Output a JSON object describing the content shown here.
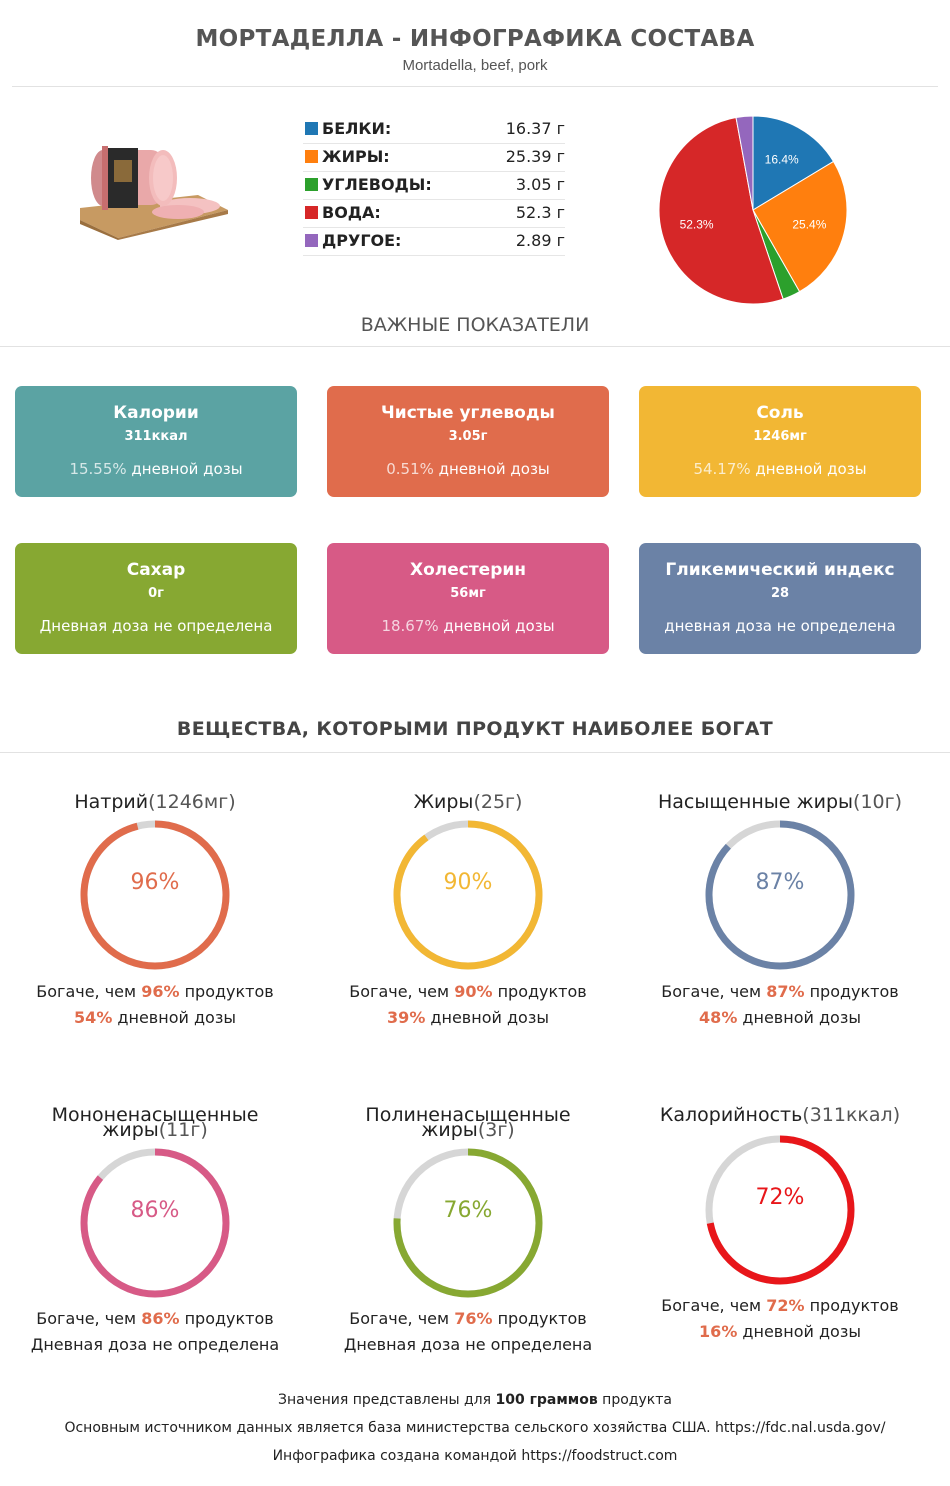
{
  "header": {
    "title": "МОРТАДЕЛЛА - ИНФОГРАФИКА СОСТАВА",
    "subtitle": "Mortadella, beef, pork"
  },
  "macros": [
    {
      "name": "БЕЛКИ:",
      "value": "16.37 г",
      "color": "#1f77b4"
    },
    {
      "name": "ЖИРЫ:",
      "value": "25.39 г",
      "color": "#ff7f0e"
    },
    {
      "name": "УГЛЕВОДЫ:",
      "value": "3.05 г",
      "color": "#2ca02c"
    },
    {
      "name": "ВОДА:",
      "value": "52.3 г",
      "color": "#d62728"
    },
    {
      "name": "ДРУГОЕ:",
      "value": "2.89 г",
      "color": "#9467bd"
    }
  ],
  "chart_data": {
    "type": "pie",
    "categories": [
      "Белки",
      "Жиры",
      "Углеводы",
      "Вода",
      "Другое"
    ],
    "values": [
      16.37,
      25.39,
      3.05,
      52.3,
      2.89
    ],
    "labels": [
      "16.4%",
      "25.4%",
      "",
      "52.3%",
      ""
    ],
    "colors": [
      "#1f77b4",
      "#ff7f0e",
      "#2ca02c",
      "#d62728",
      "#9467bd"
    ]
  },
  "key_section_title": "ВАЖНЫЕ ПОКАЗАТЕЛИ",
  "cards": [
    {
      "name": "Калории",
      "value": "311ккал",
      "pct": "15.55%",
      "dose": " дневной дозы",
      "color": "#5ba3a3"
    },
    {
      "name": "Чистые углеводы",
      "value": "3.05г",
      "pct": "0.51%",
      "dose": " дневной дозы",
      "color": "#e06c4c"
    },
    {
      "name": "Соль",
      "value": "1246мг",
      "pct": "54.17%",
      "dose": " дневной дозы",
      "color": "#f2b734"
    },
    {
      "name": "Сахар",
      "value": "0г",
      "pct": "",
      "dose": "Дневная доза не определена",
      "color": "#87a832"
    },
    {
      "name": "Холестерин",
      "value": "56мг",
      "pct": "18.67%",
      "dose": " дневной дозы",
      "color": "#d75a86"
    },
    {
      "name": "Гликемический индекс",
      "value": "28",
      "pct": "",
      "dose": "дневная доза не определена",
      "color": "#6b82a6"
    }
  ],
  "rich_section_title": "ВЕЩЕСТВА, КОТОРЫМИ ПРОДУКТ НАИБОЛЕЕ БОГАТ",
  "nutrients": [
    {
      "name": "Натрий",
      "amount": "(1246мг)",
      "pct": "96%",
      "pct_value": 96,
      "richer_pre": "Богаче, чем ",
      "richer_pct": "96%",
      "richer_post": " продуктов",
      "dose_pct": "54%",
      "dose_text": " дневной дозы",
      "color": "#e06c4c"
    },
    {
      "name": "Жиры",
      "amount": "(25г)",
      "pct": "90%",
      "pct_value": 90,
      "richer_pre": "Богаче, чем ",
      "richer_pct": "90%",
      "richer_post": " продуктов",
      "dose_pct": "39%",
      "dose_text": " дневной дозы",
      "color": "#f2b734"
    },
    {
      "name": "Насыщенные жиры",
      "amount": "(10г)",
      "pct": "87%",
      "pct_value": 87,
      "richer_pre": "Богаче, чем ",
      "richer_pct": "87%",
      "richer_post": " продуктов",
      "dose_pct": "48%",
      "dose_text": " дневной дозы",
      "color": "#6b82a6"
    },
    {
      "name": "Мононенасыщенные жиры",
      "amount": "(11г)",
      "pct": "86%",
      "pct_value": 86,
      "richer_pre": "Богаче, чем ",
      "richer_pct": "86%",
      "richer_post": " продуктов",
      "dose_pct": "",
      "dose_text": "Дневная доза не определена",
      "color": "#d75a86"
    },
    {
      "name": "Полиненасыщенные жиры",
      "amount": "(3г)",
      "pct": "76%",
      "pct_value": 76,
      "richer_pre": "Богаче, чем ",
      "richer_pct": "76%",
      "richer_post": " продуктов",
      "dose_pct": "",
      "dose_text": "Дневная доза не определена",
      "color": "#87a832"
    },
    {
      "name": "Калорийность",
      "amount": "(311ккал)",
      "pct": "72%",
      "pct_value": 72,
      "richer_pre": "Богаче, чем ",
      "richer_pct": "72%",
      "richer_post": " продуктов",
      "dose_pct": "16%",
      "dose_text": " дневной дозы",
      "color": "#e8161a"
    }
  ],
  "footer": {
    "line1_pre": "Значения представлены для ",
    "line1_bold": "100 граммов",
    "line1_post": " продукта",
    "line2": "Основным источником данных является база министерства сельского хозяйства США. https://fdc.nal.usda.gov/",
    "line3": "Инфографика создана командой https://foodstruct.com"
  }
}
